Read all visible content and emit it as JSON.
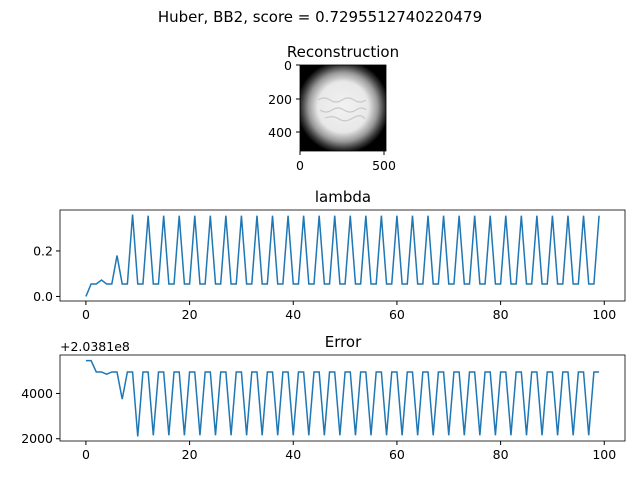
{
  "suptitle": "Huber, BB2, score = 0.7295512740220479",
  "chart_data": [
    {
      "type": "image",
      "title": "Reconstruction",
      "description_colormap": "gray",
      "xlim": [
        0,
        512
      ],
      "ylim": [
        512,
        0
      ],
      "xticks": [
        "0",
        "500"
      ],
      "yticks": [
        "0",
        "200",
        "400"
      ]
    },
    {
      "type": "line",
      "title": "lambda",
      "color": "#1f77b4",
      "xlim": [
        -5,
        104
      ],
      "ylim": [
        -0.02,
        0.38
      ],
      "xticks": [
        "0",
        "20",
        "40",
        "60",
        "80",
        "100"
      ],
      "yticks": [
        "0.0",
        "0.2"
      ],
      "x": [
        0,
        1,
        2,
        3,
        4,
        5,
        6,
        7,
        8,
        9,
        10,
        11,
        12,
        13,
        14,
        15,
        16,
        17,
        18,
        19,
        20,
        21,
        22,
        23,
        24,
        25,
        26,
        27,
        28,
        29,
        30,
        31,
        32,
        33,
        34,
        35,
        36,
        37,
        38,
        39,
        40,
        41,
        42,
        43,
        44,
        45,
        46,
        47,
        48,
        49,
        50,
        51,
        52,
        53,
        54,
        55,
        56,
        57,
        58,
        59,
        60,
        61,
        62,
        63,
        64,
        65,
        66,
        67,
        68,
        69,
        70,
        71,
        72,
        73,
        74,
        75,
        76,
        77,
        78,
        79,
        80,
        81,
        82,
        83,
        84,
        85,
        86,
        87,
        88,
        89,
        90,
        91,
        92,
        93,
        94,
        95,
        96,
        97,
        98,
        99
      ],
      "y": [
        0.0,
        0.055,
        0.055,
        0.072,
        0.055,
        0.055,
        0.18,
        0.055,
        0.055,
        0.36,
        0.055,
        0.055,
        0.355,
        0.055,
        0.055,
        0.355,
        0.055,
        0.055,
        0.355,
        0.055,
        0.055,
        0.355,
        0.055,
        0.055,
        0.355,
        0.055,
        0.055,
        0.355,
        0.055,
        0.055,
        0.355,
        0.055,
        0.055,
        0.355,
        0.055,
        0.055,
        0.355,
        0.055,
        0.055,
        0.355,
        0.055,
        0.055,
        0.355,
        0.055,
        0.055,
        0.355,
        0.055,
        0.055,
        0.355,
        0.055,
        0.055,
        0.355,
        0.055,
        0.055,
        0.355,
        0.055,
        0.055,
        0.355,
        0.055,
        0.055,
        0.355,
        0.055,
        0.055,
        0.355,
        0.055,
        0.055,
        0.355,
        0.055,
        0.055,
        0.355,
        0.055,
        0.055,
        0.355,
        0.055,
        0.055,
        0.355,
        0.055,
        0.055,
        0.355,
        0.055,
        0.055,
        0.355,
        0.055,
        0.055,
        0.355,
        0.055,
        0.055,
        0.355,
        0.055,
        0.055,
        0.355,
        0.055,
        0.055,
        0.355,
        0.055,
        0.055,
        0.355,
        0.055,
        0.055,
        0.355
      ]
    },
    {
      "type": "line",
      "title": "Error",
      "offset_label": "+2.0381e8",
      "color": "#1f77b4",
      "xlim": [
        -5,
        104
      ],
      "ylim": [
        1900,
        5700
      ],
      "xticks": [
        "0",
        "20",
        "40",
        "60",
        "80",
        "100"
      ],
      "yticks": [
        "2000",
        "4000"
      ],
      "x": [
        0,
        1,
        2,
        3,
        4,
        5,
        6,
        7,
        8,
        9,
        10,
        11,
        12,
        13,
        14,
        15,
        16,
        17,
        18,
        19,
        20,
        21,
        22,
        23,
        24,
        25,
        26,
        27,
        28,
        29,
        30,
        31,
        32,
        33,
        34,
        35,
        36,
        37,
        38,
        39,
        40,
        41,
        42,
        43,
        44,
        45,
        46,
        47,
        48,
        49,
        50,
        51,
        52,
        53,
        54,
        55,
        56,
        57,
        58,
        59,
        60,
        61,
        62,
        63,
        64,
        65,
        66,
        67,
        68,
        69,
        70,
        71,
        72,
        73,
        74,
        75,
        76,
        77,
        78,
        79,
        80,
        81,
        82,
        83,
        84,
        85,
        86,
        87,
        88,
        89,
        90,
        91,
        92,
        93,
        94,
        95,
        96,
        97,
        98,
        99
      ],
      "y": [
        5450,
        5450,
        4950,
        4950,
        4850,
        4950,
        4950,
        3750,
        4950,
        4950,
        2100,
        4950,
        4950,
        2150,
        4950,
        4950,
        2150,
        4950,
        4950,
        2150,
        4950,
        4950,
        2150,
        4950,
        4950,
        2150,
        4950,
        4950,
        2150,
        4950,
        4950,
        2150,
        4950,
        4950,
        2150,
        4950,
        4950,
        2150,
        4950,
        4950,
        2150,
        4950,
        4950,
        2150,
        4950,
        4950,
        2150,
        4950,
        4950,
        2150,
        4950,
        4950,
        2150,
        4950,
        4950,
        2150,
        4950,
        4950,
        2150,
        4950,
        4950,
        2150,
        4950,
        4950,
        2150,
        4950,
        4950,
        2150,
        4950,
        4950,
        2150,
        4950,
        4950,
        2150,
        4950,
        4950,
        2150,
        4950,
        4950,
        2150,
        4950,
        4950,
        2150,
        4950,
        4950,
        2150,
        4950,
        4950,
        2150,
        4950,
        4950,
        2150,
        4950,
        4950,
        2150,
        4950,
        4950,
        2150,
        4950,
        4950
      ]
    }
  ]
}
